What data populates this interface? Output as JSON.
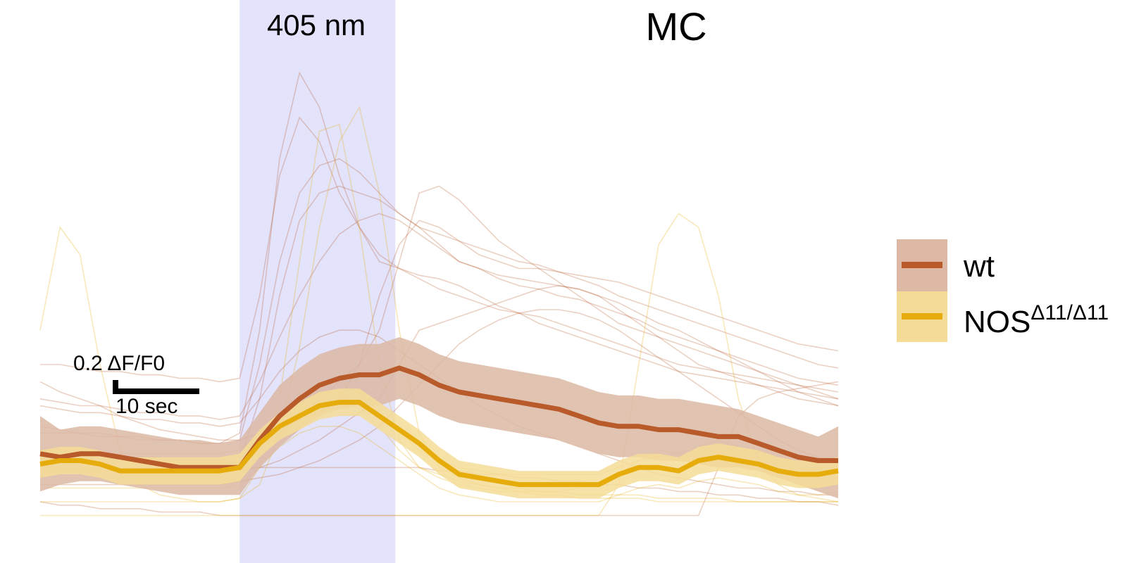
{
  "chart_data": {
    "type": "line",
    "title": "MC",
    "stimulus": {
      "label": "405 nm",
      "x_start": 10,
      "x_end": 17.8,
      "color": "#e3e3fb"
    },
    "scale_bar": {
      "y_label": "0.2 ΔF/F0",
      "x_label": "10 sec",
      "y_value": 0.2,
      "x_value": 10
    },
    "xlim": [
      0,
      40
    ],
    "ylim": [
      -0.18,
      1.26
    ],
    "x": [
      0,
      1,
      2,
      3,
      4,
      5,
      6,
      7,
      8,
      9,
      10,
      11,
      12,
      13,
      14,
      15,
      16,
      17,
      18,
      19,
      20,
      21,
      22,
      23,
      24,
      25,
      26,
      27,
      28,
      29,
      30,
      31,
      32,
      33,
      34,
      35,
      36,
      37,
      38,
      39,
      40
    ],
    "series": [
      {
        "name": "wt",
        "color": "#b85a2a",
        "band_color": "#dcb8a5",
        "mean": [
          0.04,
          0.03,
          0.04,
          0.04,
          0.03,
          0.02,
          0.01,
          0.0,
          0.0,
          0.0,
          0.0,
          0.08,
          0.15,
          0.2,
          0.24,
          0.26,
          0.27,
          0.27,
          0.29,
          0.27,
          0.24,
          0.22,
          0.21,
          0.2,
          0.19,
          0.18,
          0.17,
          0.15,
          0.13,
          0.12,
          0.12,
          0.11,
          0.11,
          0.1,
          0.09,
          0.09,
          0.07,
          0.05,
          0.03,
          0.02,
          0.02
        ],
        "upper": [
          0.15,
          0.11,
          0.12,
          0.12,
          0.11,
          0.1,
          0.09,
          0.08,
          0.08,
          0.07,
          0.08,
          0.16,
          0.24,
          0.29,
          0.33,
          0.35,
          0.36,
          0.36,
          0.38,
          0.36,
          0.33,
          0.31,
          0.3,
          0.29,
          0.28,
          0.27,
          0.26,
          0.24,
          0.22,
          0.21,
          0.21,
          0.2,
          0.2,
          0.19,
          0.18,
          0.17,
          0.15,
          0.13,
          0.11,
          0.09,
          0.12
        ],
        "lower": [
          -0.07,
          -0.05,
          -0.04,
          -0.04,
          -0.05,
          -0.06,
          -0.07,
          -0.08,
          -0.08,
          -0.08,
          -0.08,
          0.0,
          0.06,
          0.11,
          0.15,
          0.17,
          0.18,
          0.18,
          0.2,
          0.18,
          0.15,
          0.13,
          0.12,
          0.11,
          0.1,
          0.09,
          0.08,
          0.06,
          0.04,
          0.03,
          0.03,
          0.02,
          0.02,
          0.01,
          0.0,
          0.0,
          -0.01,
          -0.03,
          -0.05,
          -0.07,
          -0.09
        ]
      },
      {
        "name": "NOSΔ11/Δ11",
        "name_base": "NOS",
        "name_sup": "Δ11/Δ11",
        "color": "#e5ac0c",
        "band_color": "#f4dc96",
        "mean": [
          0.01,
          0.02,
          0.02,
          0.01,
          -0.01,
          -0.01,
          -0.01,
          -0.01,
          -0.01,
          -0.01,
          0.0,
          0.07,
          0.12,
          0.15,
          0.18,
          0.19,
          0.19,
          0.15,
          0.11,
          0.07,
          0.02,
          -0.02,
          -0.03,
          -0.04,
          -0.05,
          -0.05,
          -0.05,
          -0.05,
          -0.05,
          -0.02,
          0.0,
          0.0,
          -0.01,
          0.02,
          0.03,
          0.02,
          0.01,
          -0.01,
          -0.02,
          -0.02,
          -0.01
        ],
        "upper": [
          0.05,
          0.06,
          0.06,
          0.05,
          0.03,
          0.03,
          0.03,
          0.03,
          0.03,
          0.03,
          0.04,
          0.11,
          0.16,
          0.19,
          0.22,
          0.23,
          0.23,
          0.19,
          0.15,
          0.11,
          0.06,
          0.02,
          0.01,
          0.0,
          -0.01,
          -0.01,
          -0.01,
          -0.01,
          -0.01,
          0.02,
          0.04,
          0.04,
          0.03,
          0.06,
          0.07,
          0.06,
          0.05,
          0.03,
          0.02,
          0.02,
          0.03
        ],
        "lower": [
          -0.03,
          -0.02,
          -0.02,
          -0.03,
          -0.05,
          -0.05,
          -0.05,
          -0.05,
          -0.05,
          -0.05,
          -0.04,
          0.03,
          0.08,
          0.11,
          0.14,
          0.15,
          0.15,
          0.11,
          0.07,
          0.03,
          -0.02,
          -0.06,
          -0.07,
          -0.08,
          -0.09,
          -0.09,
          -0.09,
          -0.09,
          -0.09,
          -0.06,
          -0.04,
          -0.04,
          -0.05,
          -0.02,
          -0.01,
          -0.02,
          -0.03,
          -0.05,
          -0.06,
          -0.06,
          -0.05
        ]
      }
    ],
    "individual_traces": [
      {
        "group": "wt",
        "values": [
          0.3,
          0.3,
          0.29,
          0.28,
          0.28,
          0.27,
          0.27,
          0.26,
          0.26,
          0.25,
          0.26,
          0.5,
          0.85,
          1.02,
          0.95,
          0.8,
          0.7,
          0.6,
          0.58,
          0.56,
          0.55,
          0.53,
          0.5,
          0.47,
          0.45,
          0.42,
          0.4,
          0.38,
          0.36,
          0.34,
          0.32,
          0.3,
          0.28,
          0.27,
          0.26,
          0.25,
          0.24,
          0.23,
          0.22,
          0.21,
          0.2
        ]
      },
      {
        "group": "wt",
        "values": [
          0.1,
          0.1,
          0.1,
          0.09,
          0.09,
          0.08,
          0.08,
          0.08,
          0.07,
          0.07,
          0.08,
          0.3,
          0.6,
          0.8,
          0.88,
          0.9,
          0.86,
          0.8,
          0.74,
          0.7,
          0.68,
          0.66,
          0.64,
          0.62,
          0.6,
          0.59,
          0.57,
          0.55,
          0.53,
          0.5,
          0.48,
          0.46,
          0.44,
          0.42,
          0.4,
          0.38,
          0.36,
          0.34,
          0.32,
          0.3,
          0.29
        ]
      },
      {
        "group": "wt",
        "values": [
          0.0,
          0.0,
          0.0,
          0.0,
          0.0,
          0.0,
          0.0,
          0.0,
          0.0,
          0.0,
          0.02,
          0.2,
          0.5,
          0.72,
          0.8,
          0.82,
          0.8,
          0.78,
          0.74,
          0.7,
          0.65,
          0.6,
          0.58,
          0.55,
          0.53,
          0.52,
          0.5,
          0.49,
          0.47,
          0.45,
          0.43,
          0.4,
          0.38,
          0.36,
          0.34,
          0.32,
          0.3,
          0.28,
          0.26,
          0.25,
          0.24
        ]
      },
      {
        "group": "wt",
        "values": [
          0.12,
          0.11,
          0.1,
          0.1,
          0.09,
          0.09,
          0.08,
          0.08,
          0.07,
          0.07,
          0.1,
          0.4,
          0.9,
          1.15,
          1.05,
          0.85,
          0.7,
          0.62,
          0.58,
          0.55,
          0.52,
          0.5,
          0.48,
          0.46,
          0.45,
          0.44,
          0.42,
          0.4,
          0.38,
          0.36,
          0.34,
          0.32,
          0.3,
          0.29,
          0.28,
          0.27,
          0.26,
          0.25,
          0.24,
          0.23,
          0.22
        ]
      },
      {
        "group": "wt",
        "values": [
          0.05,
          0.05,
          0.04,
          0.04,
          0.03,
          0.03,
          0.03,
          0.02,
          0.02,
          0.02,
          0.03,
          0.05,
          0.1,
          0.15,
          0.2,
          0.25,
          0.3,
          0.4,
          0.6,
          0.8,
          0.82,
          0.78,
          0.72,
          0.66,
          0.62,
          0.58,
          0.54,
          0.5,
          0.46,
          0.42,
          0.4,
          0.38,
          0.36,
          0.34,
          0.32,
          0.3,
          0.28,
          0.26,
          0.24,
          0.22,
          0.2
        ]
      },
      {
        "group": "wt",
        "values": [
          0.2,
          0.19,
          0.18,
          0.18,
          0.17,
          0.16,
          0.16,
          0.15,
          0.15,
          0.14,
          0.15,
          0.25,
          0.38,
          0.5,
          0.6,
          0.68,
          0.72,
          0.74,
          0.72,
          0.68,
          0.64,
          0.6,
          0.58,
          0.56,
          0.55,
          0.54,
          0.53,
          0.52,
          0.5,
          0.48,
          0.45,
          0.42,
          0.4,
          0.37,
          0.34,
          0.31,
          0.28,
          0.25,
          0.22,
          0.2,
          0.18
        ]
      },
      {
        "group": "wt",
        "values": [
          0.0,
          0.0,
          -0.01,
          -0.01,
          -0.01,
          -0.02,
          -0.02,
          -0.02,
          -0.02,
          -0.02,
          -0.01,
          0.0,
          0.02,
          0.05,
          0.08,
          0.12,
          0.16,
          0.2,
          0.3,
          0.4,
          0.42,
          0.44,
          0.46,
          0.48,
          0.5,
          0.52,
          0.53,
          0.52,
          0.5,
          0.46,
          0.42,
          0.38,
          0.34,
          0.3,
          0.28,
          0.26,
          0.24,
          0.22,
          0.2,
          0.19,
          0.18
        ]
      },
      {
        "group": "wt",
        "values": [
          -0.05,
          -0.05,
          -0.05,
          -0.05,
          -0.05,
          -0.05,
          -0.05,
          -0.05,
          -0.05,
          -0.05,
          -0.04,
          -0.03,
          -0.02,
          0.0,
          0.02,
          0.05,
          0.08,
          0.12,
          0.18,
          0.24,
          0.3,
          0.36,
          0.4,
          0.43,
          0.45,
          0.46,
          0.46,
          0.45,
          0.43,
          0.4,
          0.36,
          0.32,
          0.28,
          0.24,
          0.2,
          0.16,
          0.12,
          0.08,
          0.05,
          0.03,
          0.02
        ]
      },
      {
        "group": "wt",
        "values": [
          0.25,
          0.22,
          0.2,
          0.18,
          0.15,
          0.13,
          0.11,
          0.1,
          0.09,
          0.08,
          0.08,
          0.1,
          0.12,
          0.14,
          0.16,
          0.2,
          0.3,
          0.5,
          0.65,
          0.72,
          0.7,
          0.66,
          0.62,
          0.6,
          0.58,
          0.58,
          0.57,
          0.56,
          0.55,
          0.54,
          0.52,
          0.5,
          0.48,
          0.46,
          0.44,
          0.42,
          0.4,
          0.38,
          0.36,
          0.35,
          0.34
        ]
      },
      {
        "group": "wt",
        "values": [
          0.02,
          0.02,
          0.02,
          0.01,
          0.01,
          0.01,
          0.01,
          0.0,
          0.0,
          0.0,
          0.0,
          0.0,
          0.0,
          0.0,
          0.0,
          0.0,
          0.0,
          0.0,
          0.0,
          0.0,
          -0.01,
          -0.01,
          -0.02,
          -0.02,
          -0.03,
          -0.03,
          -0.04,
          -0.04,
          -0.05,
          -0.05,
          -0.06,
          -0.06,
          -0.07,
          -0.07,
          -0.08,
          -0.08,
          -0.09,
          -0.09,
          -0.1,
          -0.1,
          -0.11
        ]
      },
      {
        "group": "wt",
        "values": [
          -0.1,
          -0.11,
          -0.11,
          -0.12,
          -0.12,
          -0.12,
          -0.13,
          -0.13,
          -0.13,
          -0.14,
          -0.14,
          -0.14,
          -0.14,
          -0.14,
          -0.14,
          -0.14,
          -0.14,
          -0.14,
          -0.14,
          -0.14,
          -0.14,
          -0.14,
          -0.14,
          -0.14,
          -0.14,
          -0.14,
          -0.14,
          -0.14,
          -0.14,
          -0.14,
          -0.14,
          -0.14,
          -0.14,
          -0.14,
          0.0,
          0.15,
          0.2,
          0.22,
          0.23,
          0.24,
          0.25
        ]
      },
      {
        "group": "wt",
        "values": [
          0.18,
          0.17,
          0.16,
          0.16,
          0.15,
          0.14,
          0.14,
          0.13,
          0.13,
          0.12,
          0.13,
          0.2,
          0.28,
          0.34,
          0.38,
          0.4,
          0.4,
          0.38,
          0.34,
          0.3,
          0.26,
          0.22,
          0.18,
          0.15,
          0.12,
          0.1,
          0.08,
          0.06,
          0.04,
          0.02,
          0.0,
          -0.02,
          -0.03,
          -0.04,
          -0.05,
          -0.06,
          -0.06,
          -0.07,
          -0.07,
          -0.08,
          -0.08
        ]
      },
      {
        "group": "NOSΔ11/Δ11",
        "values": [
          0.4,
          0.7,
          0.62,
          0.3,
          0.05,
          -0.05,
          -0.08,
          -0.09,
          -0.1,
          -0.1,
          -0.09,
          0.0,
          0.2,
          0.6,
          0.98,
          1.0,
          0.7,
          0.3,
          0.08,
          0.0,
          -0.02,
          -0.04,
          -0.05,
          -0.06,
          -0.06,
          -0.07,
          -0.07,
          -0.08,
          -0.08,
          -0.08,
          -0.08,
          -0.09,
          -0.09,
          -0.09,
          -0.09,
          -0.1,
          -0.1,
          -0.1,
          -0.1,
          -0.1,
          -0.1
        ]
      },
      {
        "group": "NOSΔ11/Δ11",
        "values": [
          -0.1,
          -0.1,
          -0.1,
          -0.1,
          -0.1,
          -0.1,
          -0.1,
          -0.1,
          -0.1,
          -0.1,
          -0.09,
          -0.05,
          0.1,
          0.35,
          0.7,
          0.95,
          1.05,
          0.8,
          0.4,
          0.1,
          0.0,
          -0.03,
          -0.05,
          -0.06,
          -0.07,
          -0.08,
          -0.08,
          -0.09,
          -0.09,
          -0.09,
          -0.09,
          -0.1,
          -0.1,
          -0.1,
          -0.1,
          -0.1,
          -0.1,
          -0.1,
          -0.1,
          -0.1,
          -0.1
        ]
      },
      {
        "group": "NOSΔ11/Δ11",
        "values": [
          -0.14,
          -0.14,
          -0.14,
          -0.14,
          -0.14,
          -0.14,
          -0.14,
          -0.14,
          -0.14,
          -0.14,
          -0.14,
          -0.14,
          -0.14,
          -0.14,
          -0.14,
          -0.14,
          -0.14,
          -0.14,
          -0.14,
          -0.14,
          -0.14,
          -0.14,
          -0.14,
          -0.14,
          -0.14,
          -0.14,
          -0.14,
          -0.14,
          -0.14,
          -0.05,
          0.3,
          0.65,
          0.74,
          0.7,
          0.5,
          0.2,
          0.02,
          -0.05,
          -0.08,
          -0.09,
          -0.1
        ]
      },
      {
        "group": "NOSΔ11/Δ11",
        "values": [
          0.0,
          0.0,
          0.0,
          0.0,
          0.0,
          0.0,
          0.0,
          0.0,
          0.0,
          0.0,
          0.01,
          0.05,
          0.12,
          0.18,
          0.22,
          0.22,
          0.18,
          0.12,
          0.05,
          0.0,
          -0.03,
          -0.05,
          -0.06,
          -0.07,
          -0.07,
          -0.07,
          -0.07,
          -0.06,
          -0.05,
          -0.02,
          0.02,
          0.05,
          0.04,
          0.06,
          0.08,
          0.06,
          0.04,
          0.01,
          -0.01,
          -0.02,
          -0.02
        ]
      },
      {
        "group": "NOSΔ11/Δ11",
        "values": [
          0.05,
          0.05,
          0.05,
          0.04,
          0.04,
          0.04,
          0.04,
          0.04,
          0.04,
          0.04,
          0.05,
          0.1,
          0.15,
          0.2,
          0.24,
          0.25,
          0.22,
          0.16,
          0.1,
          0.05,
          0.02,
          0.0,
          -0.01,
          -0.02,
          -0.02,
          -0.02,
          -0.02,
          -0.02,
          -0.02,
          0.0,
          0.02,
          0.03,
          0.02,
          0.04,
          0.05,
          0.04,
          0.03,
          0.01,
          0.0,
          0.0,
          0.0
        ]
      },
      {
        "group": "NOSΔ11/Δ11",
        "values": [
          -0.06,
          -0.06,
          -0.06,
          -0.06,
          -0.06,
          -0.06,
          -0.06,
          -0.06,
          -0.06,
          -0.06,
          -0.05,
          0.0,
          0.06,
          0.1,
          0.12,
          0.12,
          0.1,
          0.06,
          0.02,
          -0.02,
          -0.06,
          -0.08,
          -0.09,
          -0.1,
          -0.1,
          -0.1,
          -0.1,
          -0.1,
          -0.1,
          -0.08,
          -0.06,
          -0.05,
          -0.06,
          -0.04,
          -0.03,
          -0.04,
          -0.05,
          -0.07,
          -0.08,
          -0.08,
          -0.07
        ]
      }
    ]
  },
  "legend": {
    "items": [
      {
        "label": "wt",
        "line_color": "#b85a2a",
        "band_color": "#dcb8a5"
      },
      {
        "label_base": "NOS",
        "label_sup": "Δ11/Δ11",
        "line_color": "#e5ac0c",
        "band_color": "#f4dc96"
      }
    ]
  }
}
